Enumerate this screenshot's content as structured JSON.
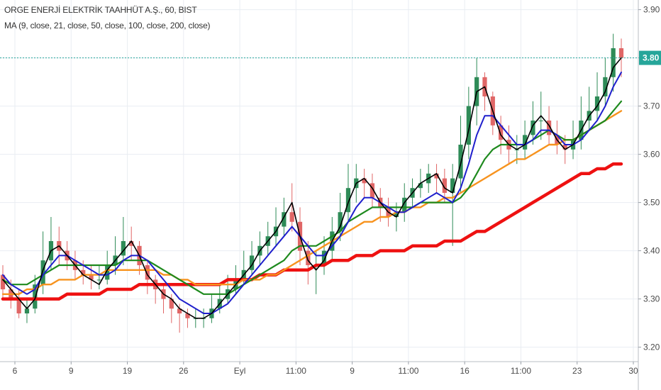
{
  "header": {
    "title": "ORGE ENERJİ ELEKTRİK TAAHHÜT A.Ş., 60, BIST",
    "indicator": "MA (9, close, 21, close, 50, close, 100, close, 200, close)"
  },
  "colors": {
    "up": "#2e8b57",
    "down": "#e06666",
    "ma9": "#000000",
    "ma21": "#1f1fcc",
    "ma50": "#1e8a1e",
    "ma100": "#f7931e",
    "ma200": "#ee1111",
    "last_price": "#26a69a",
    "grid": "#e9edf2"
  },
  "chart_data": {
    "type": "line",
    "title": "ORGE ENERJİ ELEKTRİK TAAHHÜT A.Ş., 60, BIST",
    "ylim": [
      3.17,
      3.92
    ],
    "y_ticks": [
      "3.20",
      "3.30",
      "3.40",
      "3.50",
      "3.60",
      "3.70",
      "3.80",
      "3.90"
    ],
    "x_ticks": [
      "6",
      "9",
      "19",
      "26",
      "Eyl",
      "11:00",
      "9",
      "11:00",
      "16",
      "11:00",
      "23",
      "30"
    ],
    "last_price": "3.80",
    "series": [
      {
        "name": "MA 9",
        "key": "ma9",
        "values": [
          3.34,
          3.32,
          3.3,
          3.28,
          3.3,
          3.36,
          3.4,
          3.41,
          3.39,
          3.37,
          3.35,
          3.34,
          3.33,
          3.36,
          3.38,
          3.4,
          3.42,
          3.39,
          3.35,
          3.33,
          3.31,
          3.3,
          3.28,
          3.27,
          3.26,
          3.26,
          3.27,
          3.29,
          3.31,
          3.33,
          3.35,
          3.37,
          3.4,
          3.42,
          3.44,
          3.47,
          3.5,
          3.43,
          3.38,
          3.36,
          3.38,
          3.42,
          3.45,
          3.5,
          3.54,
          3.55,
          3.53,
          3.5,
          3.48,
          3.47,
          3.5,
          3.52,
          3.54,
          3.55,
          3.56,
          3.53,
          3.52,
          3.58,
          3.65,
          3.73,
          3.74,
          3.69,
          3.64,
          3.62,
          3.61,
          3.62,
          3.66,
          3.68,
          3.66,
          3.63,
          3.61,
          3.62,
          3.65,
          3.68,
          3.7,
          3.73,
          3.78,
          3.8
        ]
      },
      {
        "name": "MA 21",
        "key": "ma21",
        "values": [
          3.35,
          3.33,
          3.32,
          3.31,
          3.32,
          3.35,
          3.37,
          3.39,
          3.39,
          3.38,
          3.37,
          3.36,
          3.35,
          3.35,
          3.36,
          3.38,
          3.39,
          3.39,
          3.38,
          3.36,
          3.34,
          3.32,
          3.3,
          3.29,
          3.28,
          3.27,
          3.27,
          3.28,
          3.29,
          3.31,
          3.33,
          3.35,
          3.37,
          3.39,
          3.41,
          3.43,
          3.45,
          3.43,
          3.41,
          3.39,
          3.39,
          3.41,
          3.43,
          3.46,
          3.49,
          3.51,
          3.51,
          3.5,
          3.49,
          3.48,
          3.48,
          3.49,
          3.5,
          3.51,
          3.52,
          3.51,
          3.5,
          3.53,
          3.58,
          3.64,
          3.68,
          3.68,
          3.66,
          3.64,
          3.62,
          3.62,
          3.63,
          3.65,
          3.65,
          3.64,
          3.62,
          3.62,
          3.63,
          3.65,
          3.67,
          3.7,
          3.74,
          3.77
        ]
      },
      {
        "name": "MA 50",
        "key": "ma50",
        "values": [
          3.34,
          3.33,
          3.33,
          3.33,
          3.34,
          3.35,
          3.36,
          3.37,
          3.37,
          3.37,
          3.37,
          3.37,
          3.37,
          3.37,
          3.37,
          3.38,
          3.38,
          3.38,
          3.38,
          3.37,
          3.36,
          3.35,
          3.34,
          3.33,
          3.32,
          3.31,
          3.31,
          3.31,
          3.31,
          3.32,
          3.33,
          3.34,
          3.35,
          3.36,
          3.37,
          3.38,
          3.4,
          3.41,
          3.41,
          3.41,
          3.42,
          3.43,
          3.44,
          3.46,
          3.47,
          3.48,
          3.49,
          3.49,
          3.49,
          3.49,
          3.49,
          3.49,
          3.5,
          3.5,
          3.5,
          3.5,
          3.5,
          3.51,
          3.53,
          3.56,
          3.59,
          3.61,
          3.62,
          3.62,
          3.62,
          3.62,
          3.63,
          3.64,
          3.65,
          3.64,
          3.63,
          3.63,
          3.64,
          3.65,
          3.66,
          3.67,
          3.69,
          3.71
        ]
      },
      {
        "name": "MA 100",
        "key": "ma100",
        "values": [
          3.31,
          3.31,
          3.31,
          3.32,
          3.32,
          3.33,
          3.33,
          3.34,
          3.34,
          3.34,
          3.35,
          3.35,
          3.35,
          3.36,
          3.36,
          3.36,
          3.36,
          3.36,
          3.36,
          3.36,
          3.35,
          3.35,
          3.34,
          3.34,
          3.33,
          3.33,
          3.33,
          3.33,
          3.33,
          3.33,
          3.34,
          3.34,
          3.34,
          3.35,
          3.35,
          3.36,
          3.37,
          3.38,
          3.39,
          3.4,
          3.41,
          3.42,
          3.43,
          3.44,
          3.45,
          3.46,
          3.46,
          3.47,
          3.47,
          3.48,
          3.48,
          3.49,
          3.49,
          3.5,
          3.5,
          3.51,
          3.51,
          3.52,
          3.53,
          3.54,
          3.55,
          3.56,
          3.57,
          3.58,
          3.59,
          3.59,
          3.6,
          3.61,
          3.62,
          3.62,
          3.63,
          3.63,
          3.64,
          3.65,
          3.66,
          3.67,
          3.68,
          3.69
        ]
      },
      {
        "name": "MA 200",
        "key": "ma200",
        "values": [
          3.3,
          3.3,
          3.3,
          3.3,
          3.3,
          3.3,
          3.3,
          3.3,
          3.31,
          3.31,
          3.31,
          3.31,
          3.31,
          3.32,
          3.32,
          3.32,
          3.32,
          3.33,
          3.33,
          3.33,
          3.33,
          3.33,
          3.33,
          3.33,
          3.33,
          3.33,
          3.33,
          3.33,
          3.34,
          3.34,
          3.34,
          3.34,
          3.35,
          3.35,
          3.35,
          3.36,
          3.36,
          3.36,
          3.36,
          3.37,
          3.37,
          3.38,
          3.38,
          3.38,
          3.39,
          3.39,
          3.39,
          3.4,
          3.4,
          3.4,
          3.4,
          3.41,
          3.41,
          3.41,
          3.41,
          3.42,
          3.42,
          3.42,
          3.43,
          3.44,
          3.44,
          3.45,
          3.46,
          3.47,
          3.48,
          3.49,
          3.5,
          3.51,
          3.52,
          3.53,
          3.54,
          3.55,
          3.56,
          3.56,
          3.57,
          3.57,
          3.58,
          3.58
        ]
      }
    ],
    "candles": {
      "open": [
        3.35,
        3.32,
        3.3,
        3.27,
        3.28,
        3.33,
        3.38,
        3.42,
        3.4,
        3.38,
        3.36,
        3.35,
        3.34,
        3.34,
        3.37,
        3.39,
        3.42,
        3.41,
        3.37,
        3.34,
        3.32,
        3.3,
        3.28,
        3.27,
        3.26,
        3.26,
        3.26,
        3.28,
        3.3,
        3.32,
        3.34,
        3.36,
        3.39,
        3.41,
        3.43,
        3.45,
        3.48,
        3.46,
        3.4,
        3.37,
        3.37,
        3.4,
        3.44,
        3.48,
        3.53,
        3.55,
        3.54,
        3.51,
        3.49,
        3.47,
        3.48,
        3.51,
        3.53,
        3.54,
        3.56,
        3.55,
        3.52,
        3.55,
        3.62,
        3.7,
        3.76,
        3.72,
        3.66,
        3.63,
        3.61,
        3.61,
        3.64,
        3.67,
        3.67,
        3.64,
        3.62,
        3.61,
        3.63,
        3.67,
        3.69,
        3.72,
        3.76,
        3.82
      ],
      "close": [
        3.32,
        3.3,
        3.27,
        3.28,
        3.33,
        3.38,
        3.42,
        3.4,
        3.38,
        3.36,
        3.35,
        3.34,
        3.34,
        3.37,
        3.39,
        3.42,
        3.41,
        3.37,
        3.34,
        3.32,
        3.3,
        3.28,
        3.27,
        3.26,
        3.26,
        3.26,
        3.28,
        3.3,
        3.32,
        3.34,
        3.36,
        3.39,
        3.41,
        3.43,
        3.45,
        3.48,
        3.46,
        3.4,
        3.37,
        3.37,
        3.4,
        3.44,
        3.48,
        3.53,
        3.55,
        3.54,
        3.51,
        3.49,
        3.47,
        3.48,
        3.51,
        3.53,
        3.54,
        3.56,
        3.55,
        3.52,
        3.55,
        3.62,
        3.7,
        3.76,
        3.72,
        3.66,
        3.63,
        3.61,
        3.61,
        3.64,
        3.67,
        3.67,
        3.64,
        3.62,
        3.61,
        3.63,
        3.67,
        3.69,
        3.72,
        3.76,
        3.82,
        3.8
      ],
      "high": [
        3.37,
        3.34,
        3.32,
        3.3,
        3.35,
        3.44,
        3.47,
        3.45,
        3.42,
        3.4,
        3.38,
        3.37,
        3.37,
        3.4,
        3.43,
        3.47,
        3.45,
        3.42,
        3.38,
        3.35,
        3.33,
        3.31,
        3.29,
        3.28,
        3.28,
        3.28,
        3.31,
        3.33,
        3.35,
        3.37,
        3.4,
        3.42,
        3.44,
        3.46,
        3.49,
        3.51,
        3.54,
        3.49,
        3.42,
        3.4,
        3.43,
        3.47,
        3.52,
        3.58,
        3.58,
        3.57,
        3.56,
        3.53,
        3.51,
        3.5,
        3.54,
        3.55,
        3.57,
        3.58,
        3.58,
        3.57,
        3.58,
        3.68,
        3.74,
        3.8,
        3.77,
        3.73,
        3.68,
        3.66,
        3.64,
        3.67,
        3.71,
        3.73,
        3.7,
        3.67,
        3.64,
        3.67,
        3.72,
        3.74,
        3.77,
        3.8,
        3.85,
        3.84
      ],
      "low": [
        3.3,
        3.28,
        3.26,
        3.25,
        3.27,
        3.31,
        3.36,
        3.37,
        3.36,
        3.34,
        3.33,
        3.32,
        3.32,
        3.33,
        3.35,
        3.37,
        3.38,
        3.35,
        3.31,
        3.29,
        3.27,
        3.25,
        3.23,
        3.24,
        3.24,
        3.24,
        3.25,
        3.27,
        3.29,
        3.31,
        3.33,
        3.35,
        3.37,
        3.39,
        3.41,
        3.43,
        3.44,
        3.37,
        3.33,
        3.31,
        3.35,
        3.38,
        3.42,
        3.46,
        3.5,
        3.51,
        3.49,
        3.46,
        3.45,
        3.44,
        3.46,
        3.49,
        3.51,
        3.52,
        3.52,
        3.5,
        3.41,
        3.52,
        3.59,
        3.66,
        3.69,
        3.64,
        3.6,
        3.58,
        3.58,
        3.59,
        3.62,
        3.63,
        3.62,
        3.6,
        3.58,
        3.59,
        3.61,
        3.65,
        3.67,
        3.7,
        3.73,
        3.76
      ]
    }
  }
}
